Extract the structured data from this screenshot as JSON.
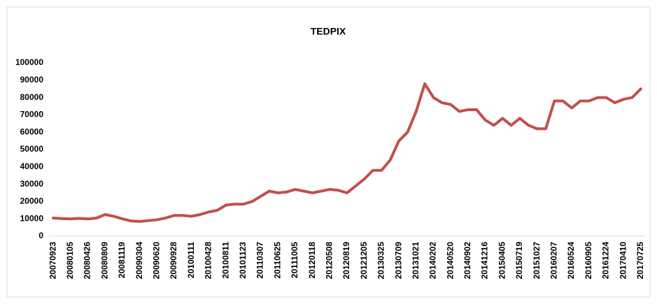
{
  "chart_data": {
    "type": "line",
    "title": "TEDPIX",
    "categories": [
      "20070923",
      null,
      "20080105",
      null,
      "20080426",
      null,
      "20080809",
      null,
      "20081119",
      null,
      "20090304",
      null,
      "20090620",
      null,
      "20090928",
      null,
      "20100111",
      null,
      "20100428",
      null,
      "20100811",
      null,
      "20101123",
      null,
      "20110307",
      null,
      "20110625",
      null,
      "20111005",
      null,
      "20120118",
      null,
      "20120508",
      null,
      "20120819",
      null,
      "20121205",
      null,
      "20130325",
      null,
      "20130709",
      null,
      "20131021",
      null,
      "20140202",
      null,
      "20140520",
      null,
      "20140902",
      null,
      "20141216",
      null,
      "20150405",
      null,
      "20150719",
      null,
      "20151027",
      null,
      "20160207",
      null,
      "20160524",
      null,
      "20160905",
      null,
      "20161224",
      null,
      "20170410",
      null,
      "20170725"
    ],
    "values": [
      10500,
      10200,
      10000,
      10300,
      10000,
      10500,
      12500,
      11500,
      10000,
      8800,
      8500,
      9000,
      9500,
      10500,
      12000,
      12000,
      11500,
      12500,
      14000,
      15000,
      18000,
      18500,
      18500,
      20000,
      23000,
      26000,
      25000,
      25500,
      27000,
      26000,
      25000,
      26000,
      27000,
      26500,
      25000,
      29000,
      33000,
      38000,
      38000,
      44000,
      55000,
      60000,
      72000,
      88000,
      80000,
      77000,
      76000,
      72000,
      73000,
      73000,
      67000,
      64000,
      68000,
      64000,
      68000,
      64000,
      62000,
      62000,
      78000,
      78000,
      74000,
      78000,
      78000,
      80000,
      80000,
      77000,
      79000,
      80000,
      85000
    ],
    "color": "#c0504d",
    "ylim": [
      0,
      100000
    ],
    "yticks": [
      0,
      10000,
      20000,
      30000,
      40000,
      50000,
      60000,
      70000,
      80000,
      90000,
      100000
    ],
    "grid": false
  }
}
